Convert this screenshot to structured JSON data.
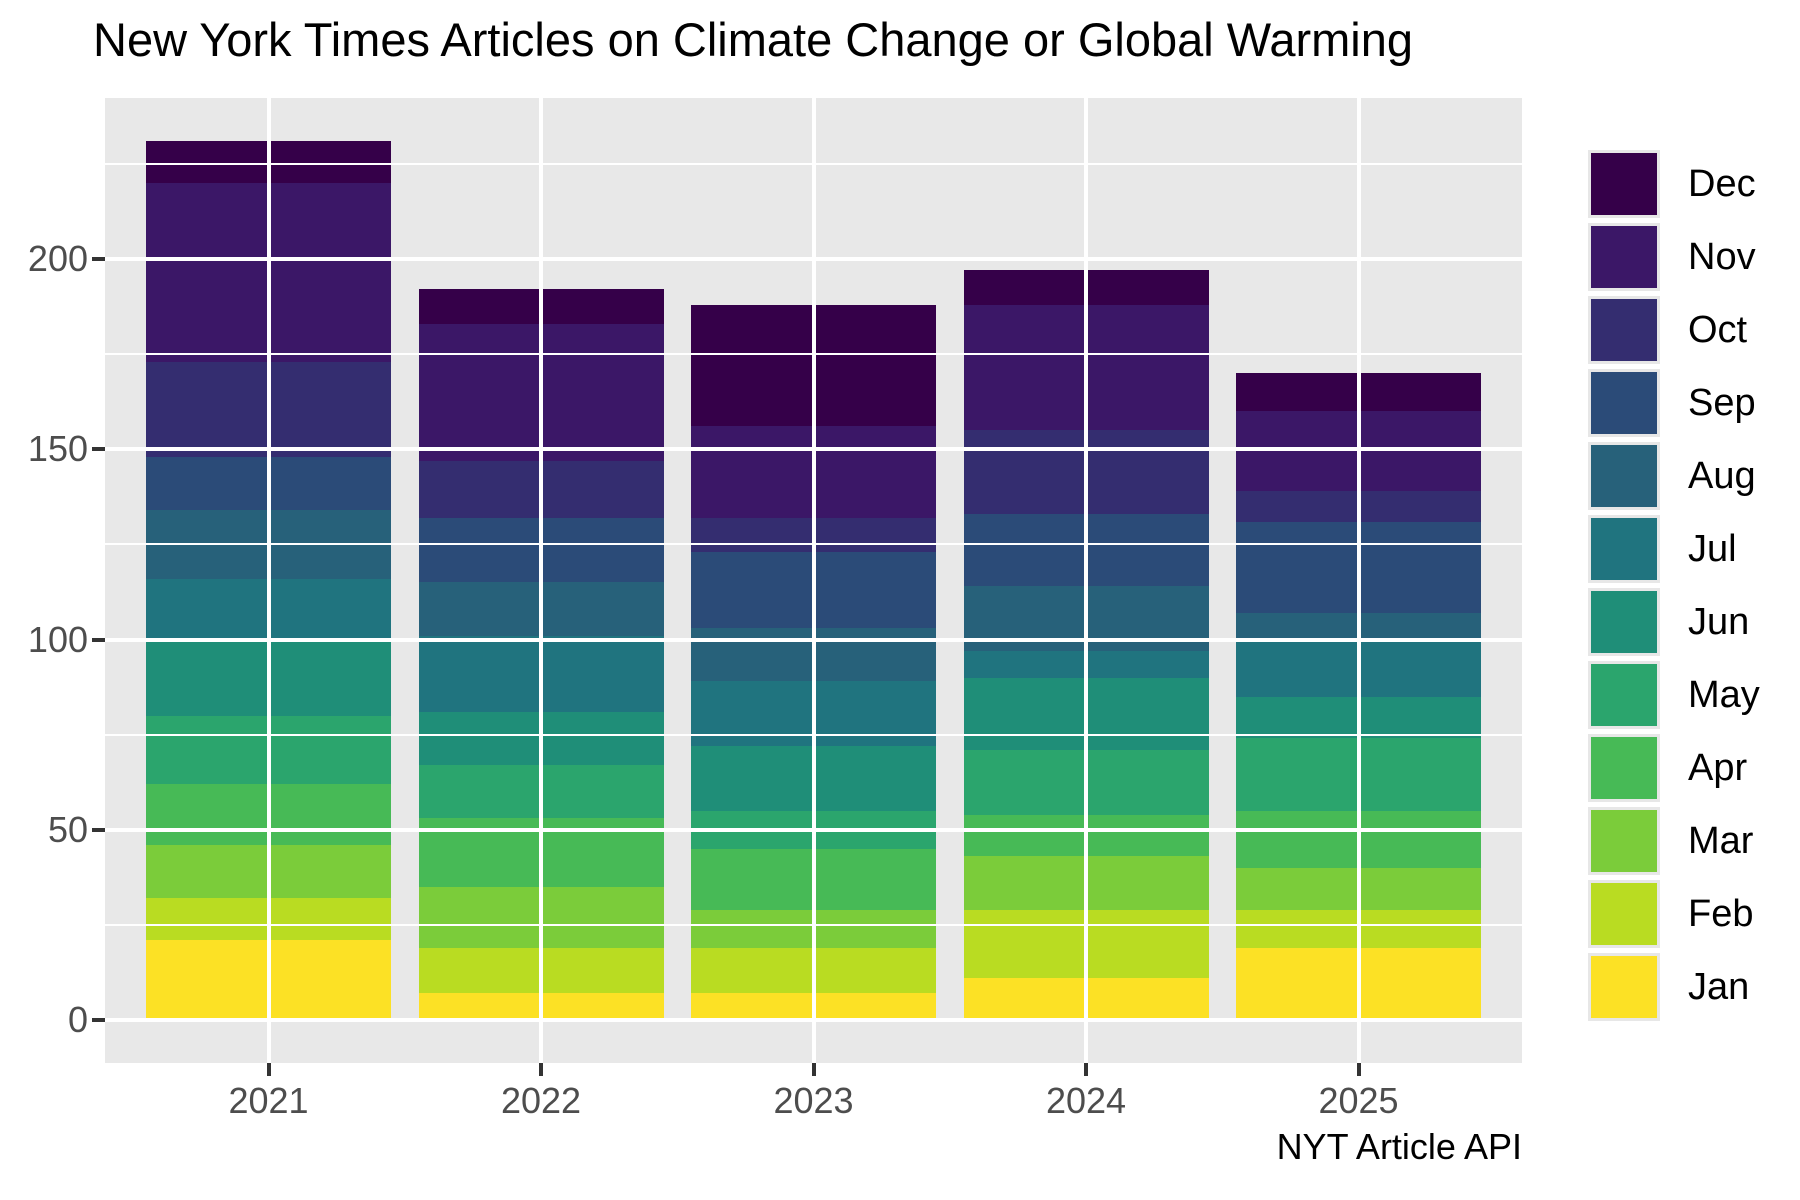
{
  "title": "New York Times Articles on Climate Change or Global Warming",
  "caption": "NYT Article API",
  "chart_data": {
    "type": "bar",
    "stacked": true,
    "title": "New York Times Articles on Climate Change or Global Warming",
    "caption": "NYT Article API",
    "xlabel": "",
    "ylabel": "",
    "categories": [
      "2021",
      "2022",
      "2023",
      "2024",
      "2025"
    ],
    "series_bottom_to_top": [
      {
        "name": "Jan",
        "color": "#FCE125",
        "values": [
          21,
          7,
          7,
          11,
          19
        ]
      },
      {
        "name": "Feb",
        "color": "#B9DC22",
        "values": [
          11,
          12,
          12,
          18,
          10
        ]
      },
      {
        "name": "Mar",
        "color": "#7BCC3A",
        "values": [
          14,
          16,
          10,
          14,
          11
        ]
      },
      {
        "name": "Apr",
        "color": "#47BA56",
        "values": [
          16,
          18,
          16,
          11,
          15
        ]
      },
      {
        "name": "May",
        "color": "#2BA56D",
        "values": [
          18,
          14,
          10,
          17,
          19
        ]
      },
      {
        "name": "Jun",
        "color": "#1F8E78",
        "values": [
          20,
          14,
          17,
          19,
          11
        ]
      },
      {
        "name": "Jul",
        "color": "#20747F",
        "values": [
          16,
          20,
          17,
          7,
          15
        ]
      },
      {
        "name": "Aug",
        "color": "#27617A",
        "values": [
          18,
          14,
          14,
          17,
          7
        ]
      },
      {
        "name": "Sep",
        "color": "#2B4B78",
        "values": [
          14,
          17,
          20,
          19,
          24
        ]
      },
      {
        "name": "Oct",
        "color": "#342D70",
        "values": [
          25,
          15,
          9,
          22,
          8
        ]
      },
      {
        "name": "Nov",
        "color": "#3B1767",
        "values": [
          47,
          36,
          24,
          33,
          21
        ]
      },
      {
        "name": "Dec",
        "color": "#350049",
        "values": [
          11,
          9,
          32,
          9,
          10
        ]
      }
    ],
    "totals": [
      231,
      192,
      188,
      197,
      170
    ],
    "legend_order_top_to_bottom": [
      "Dec",
      "Nov",
      "Oct",
      "Sep",
      "Aug",
      "Jul",
      "Jun",
      "May",
      "Apr",
      "Mar",
      "Feb",
      "Jan"
    ],
    "legend_position": "right",
    "yticks": [
      0,
      50,
      100,
      150,
      200
    ],
    "yminor": [
      25,
      75,
      125,
      175,
      225
    ],
    "ylim": [
      0,
      242
    ],
    "grid": true,
    "panel_bg": "#E8E8E8",
    "grid_color": "#FFFFFF",
    "axis_text_color": "#4D4D4D",
    "tick_color": "#333333"
  }
}
